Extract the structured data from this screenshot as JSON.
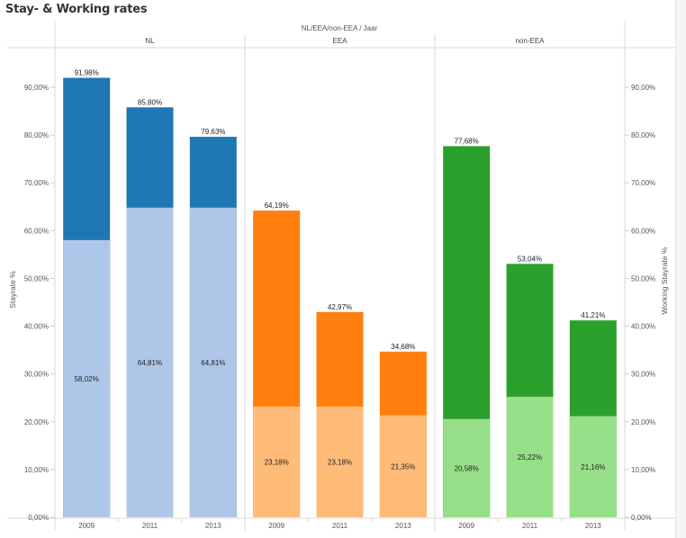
{
  "title": "Stay- & Working rates",
  "header": {
    "super_label": "NL/EEA/non-EEA  /  Jaar",
    "groups": [
      "NL",
      "EEA",
      "non-EEA"
    ]
  },
  "colors": {
    "NL": {
      "working": "#aec7e8",
      "stay": "#1f77b4"
    },
    "EEA": {
      "working": "#ffbb78",
      "stay": "#ff7f0e"
    },
    "non-EEA": {
      "working": "#98df8a",
      "stay": "#2ca02c"
    }
  },
  "chart_data": {
    "type": "bar",
    "title": "Stay- & Working rates",
    "xlabel": "Jaar",
    "ylabel": "Stayrate %",
    "y2label": "Working Stayrate %",
    "ylim": [
      0,
      100
    ],
    "yticks": [
      "0,00%",
      "10,00%",
      "20,00%",
      "30,00%",
      "40,00%",
      "50,00%",
      "60,00%",
      "70,00%",
      "80,00%",
      "90,00%"
    ],
    "ytick_values": [
      0,
      10,
      20,
      30,
      40,
      50,
      60,
      70,
      80,
      90
    ],
    "grid": false,
    "groups": [
      {
        "name": "NL",
        "categories": [
          "2009",
          "2011",
          "2013"
        ],
        "stayrate": [
          91.98,
          85.8,
          79.63
        ],
        "stayrate_labels": [
          "91,98%",
          "85,80%",
          "79,63%"
        ],
        "working_stayrate": [
          58.02,
          64.81,
          64.81
        ],
        "working_stayrate_labels": [
          "58,02%",
          "64,81%",
          "64,81%"
        ]
      },
      {
        "name": "EEA",
        "categories": [
          "2009",
          "2011",
          "2013"
        ],
        "stayrate": [
          64.19,
          42.97,
          34.68
        ],
        "stayrate_labels": [
          "64,19%",
          "42,97%",
          "34,68%"
        ],
        "working_stayrate": [
          23.18,
          23.18,
          21.35
        ],
        "working_stayrate_labels": [
          "23,18%",
          "23,18%",
          "21,35%"
        ]
      },
      {
        "name": "non-EEA",
        "categories": [
          "2009",
          "2011",
          "2013"
        ],
        "stayrate": [
          77.68,
          53.04,
          41.21
        ],
        "stayrate_labels": [
          "77,68%",
          "53,04%",
          "41,21%"
        ],
        "working_stayrate": [
          20.58,
          25.22,
          21.16
        ],
        "working_stayrate_labels": [
          "20,58%",
          "25,22%",
          "21,16%"
        ]
      }
    ]
  }
}
